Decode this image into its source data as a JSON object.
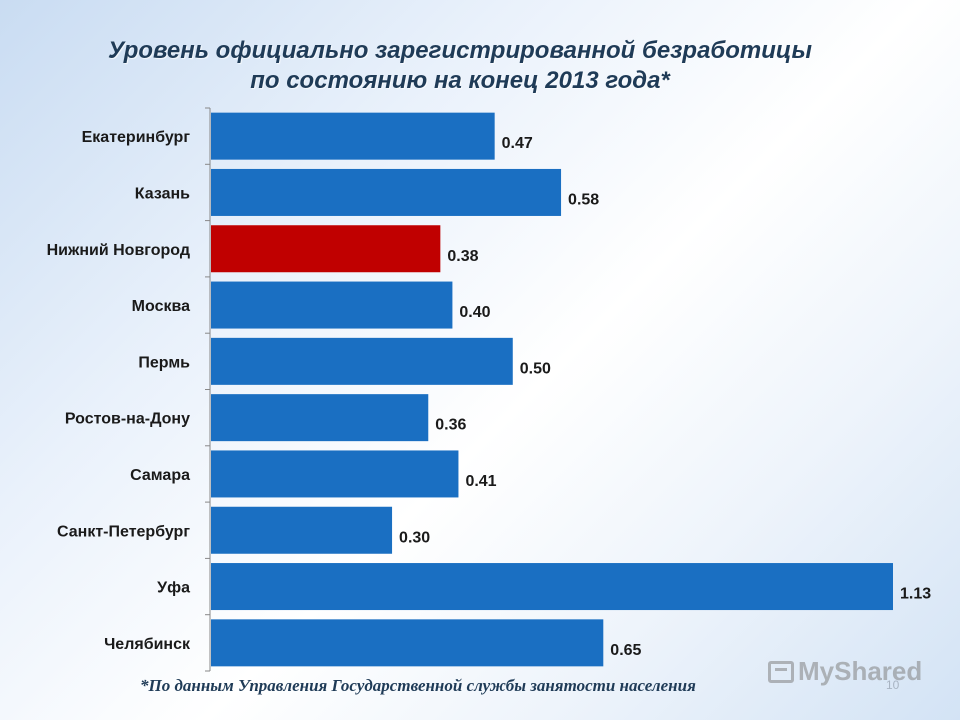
{
  "title_line1": "Уровень официально зарегистрированной безработицы",
  "title_line2": "по состоянию на конец 2013 года*",
  "footnote": "*По данным Управления Государственной службы занятости населения",
  "watermark": "MyShared",
  "slide_number": "10",
  "colors": {
    "bar": "#1a6fc2",
    "highlight": "#c00000",
    "axis": "#888888"
  },
  "chart_data": {
    "type": "bar",
    "orientation": "horizontal",
    "title": "Уровень официально зарегистрированной безработицы по состоянию на конец 2013 года*",
    "categories": [
      "Екатеринбург",
      "Казань",
      "Нижний Новгород",
      "Москва",
      "Пермь",
      "Ростов-на-Дону",
      "Самара",
      "Санкт-Петербург",
      "Уфа",
      "Челябинск"
    ],
    "values": [
      0.47,
      0.58,
      0.38,
      0.4,
      0.5,
      0.36,
      0.41,
      0.3,
      1.13,
      0.65
    ],
    "value_labels": [
      "0.47",
      "0.58",
      "0.38",
      "0.40",
      "0.50",
      "0.36",
      "0.41",
      "0.30",
      "1.13",
      "0.65"
    ],
    "highlight_index": 2,
    "xlim": [
      0,
      1.13
    ],
    "grid": false,
    "legend": "none"
  }
}
